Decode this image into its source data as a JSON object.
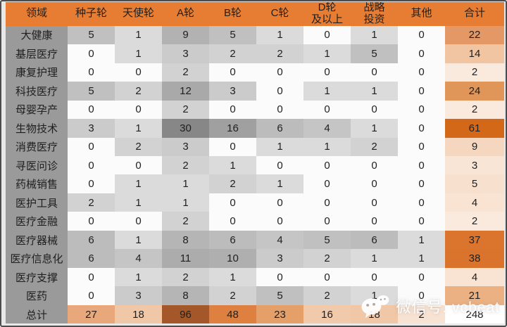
{
  "chart_data": {
    "type": "table",
    "columns": [
      "领域",
      "种子轮",
      "天使轮",
      "A轮",
      "B轮",
      "C轮",
      "D轮\n及以上",
      "战略\n投资",
      "其他",
      "合计"
    ],
    "rows": [
      {
        "label": "大健康",
        "values": [
          5,
          1,
          9,
          5,
          1,
          0,
          1,
          0
        ],
        "total": 22,
        "total_color": "#E39865"
      },
      {
        "label": "基层医疗",
        "values": [
          0,
          1,
          3,
          2,
          2,
          1,
          5,
          0
        ],
        "total": 14,
        "total_color": "#F1C4A2"
      },
      {
        "label": "康复护理",
        "values": [
          0,
          0,
          2,
          0,
          0,
          0,
          0,
          0
        ],
        "total": 2,
        "total_color": "#FAE9DD"
      },
      {
        "label": "科技医疗",
        "values": [
          5,
          2,
          12,
          3,
          0,
          1,
          1,
          0
        ],
        "total": 24,
        "total_color": "#E09659"
      },
      {
        "label": "母婴孕产",
        "values": [
          0,
          0,
          2,
          0,
          0,
          0,
          0,
          0
        ],
        "total": 2,
        "total_color": "#FAE9DD"
      },
      {
        "label": "生物技术",
        "values": [
          3,
          1,
          30,
          16,
          6,
          4,
          1,
          0
        ],
        "total": 61,
        "total_color": "#D26818"
      },
      {
        "label": "消费医疗",
        "values": [
          0,
          2,
          3,
          0,
          1,
          1,
          2,
          0
        ],
        "total": 9,
        "total_color": "#F5D7C0"
      },
      {
        "label": "寻医问诊",
        "values": [
          0,
          0,
          2,
          1,
          0,
          0,
          0,
          0
        ],
        "total": 3,
        "total_color": "#F9E5D6"
      },
      {
        "label": "药械销售",
        "values": [
          0,
          1,
          1,
          2,
          1,
          0,
          0,
          0
        ],
        "total": 5,
        "total_color": "#F8E0CE"
      },
      {
        "label": "医护工具",
        "values": [
          2,
          1,
          1,
          0,
          0,
          0,
          0,
          0
        ],
        "total": 4,
        "total_color": "#F9E3D2"
      },
      {
        "label": "医疗金融",
        "values": [
          0,
          0,
          2,
          0,
          0,
          0,
          0,
          0
        ],
        "total": 2,
        "total_color": "#FAE9DD"
      },
      {
        "label": "医疗器械",
        "values": [
          6,
          1,
          8,
          6,
          4,
          5,
          6,
          1
        ],
        "total": 37,
        "total_color": "#DB752D"
      },
      {
        "label": "医疗信息化",
        "values": [
          6,
          4,
          11,
          10,
          3,
          2,
          1,
          1
        ],
        "total": 38,
        "total_color": "#DA732B"
      },
      {
        "label": "医疗支撑",
        "values": [
          0,
          1,
          2,
          1,
          0,
          0,
          0,
          0
        ],
        "total": 4,
        "total_color": "#F9E3D2"
      },
      {
        "label": "医药",
        "values": [
          0,
          3,
          8,
          2,
          5,
          2,
          1,
          0
        ],
        "total": 21,
        "total_color": "#ECB183"
      }
    ],
    "footer": {
      "label": "总计",
      "values": [
        27,
        18,
        96,
        48,
        23,
        16,
        18,
        2
      ],
      "colors": [
        "#E8A87C",
        "#F0C8A8",
        "#A4582A",
        "#DE8040",
        "#E5A069",
        "#F1C9AB",
        "#F0C7A7",
        "#F8E3D3"
      ],
      "total": 248,
      "total_color": "#FFFFFF"
    }
  },
  "style": {
    "header_bg": "#E67D33",
    "header_text": "#1F1F1F",
    "label_col_bg": "#9A9A9A",
    "text_color": "#1F1F1F",
    "frame_border": "#4D4D4D",
    "page_margin_bg": "#E8E8E8",
    "gray_scale": {
      "zero_color": "#FBFBFB",
      "max_color": "#878787",
      "max_value": 30,
      "exponent": 0.38
    }
  },
  "watermark": {
    "text": "微信号: vcbeat",
    "icon": "wechat-icon"
  }
}
